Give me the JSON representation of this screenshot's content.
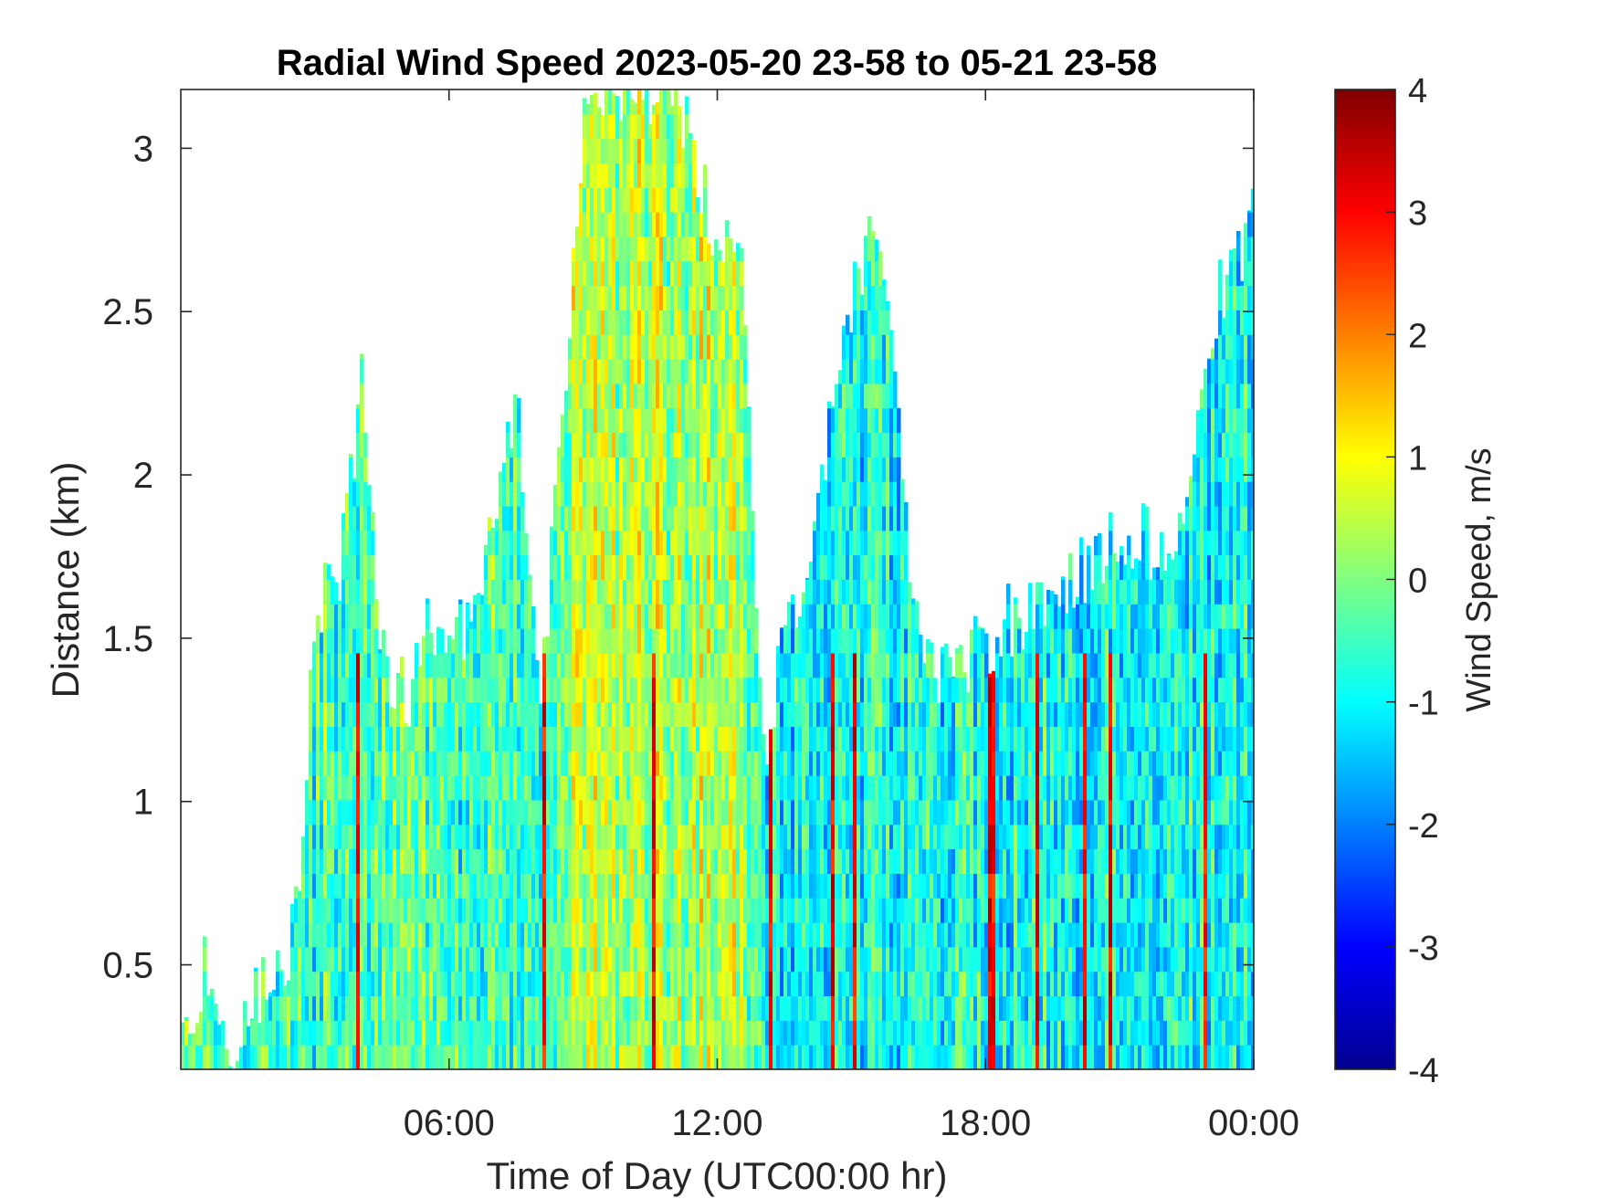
{
  "chart_data": {
    "type": "heatmap",
    "title": "Radial Wind Speed 2023-05-20 23-58 to 05-21 23-58",
    "xlabel": "Time of Day (UTC00:00 hr)",
    "ylabel": "Distance (km)",
    "xlim": [
      0,
      24
    ],
    "ylim": [
      0.18,
      3.18
    ],
    "x_ticks": [
      6,
      12,
      18,
      24
    ],
    "x_tick_labels": [
      "06:00",
      "12:00",
      "18:00",
      "00:00"
    ],
    "y_ticks": [
      0.5,
      1,
      1.5,
      2,
      2.5,
      3
    ],
    "y_tick_labels": [
      "0.5",
      "1",
      "1.5",
      "2",
      "2.5",
      "3"
    ],
    "colorbar": {
      "label": "Wind Speed, m/s",
      "colormap": "jet",
      "range": [
        -4,
        4
      ],
      "ticks": [
        4,
        3,
        2,
        1,
        0,
        -1,
        -2,
        -3,
        -4
      ],
      "tick_labels": [
        "4",
        "3",
        "2",
        "1",
        "0",
        "-1",
        "-2",
        "-3",
        "-4"
      ]
    },
    "grid": false,
    "data_coverage_top_km": [
      {
        "hour": 0.0,
        "top": 0.3
      },
      {
        "hour": 0.5,
        "top": 0.5
      },
      {
        "hour": 1.0,
        "top": 0.2
      },
      {
        "hour": 2.5,
        "top": 0.6
      },
      {
        "hour": 3.0,
        "top": 1.6
      },
      {
        "hour": 3.5,
        "top": 1.7
      },
      {
        "hour": 4.0,
        "top": 2.3
      },
      {
        "hour": 4.5,
        "top": 1.4
      },
      {
        "hour": 5.0,
        "top": 1.3
      },
      {
        "hour": 5.5,
        "top": 1.6
      },
      {
        "hour": 6.0,
        "top": 1.5
      },
      {
        "hour": 6.5,
        "top": 1.5
      },
      {
        "hour": 7.0,
        "top": 1.9
      },
      {
        "hour": 7.5,
        "top": 2.2
      },
      {
        "hour": 8.0,
        "top": 1.3
      },
      {
        "hour": 8.5,
        "top": 2.2
      },
      {
        "hour": 9.0,
        "top": 3.18
      },
      {
        "hour": 10.0,
        "top": 3.18
      },
      {
        "hour": 11.0,
        "top": 3.18
      },
      {
        "hour": 12.0,
        "top": 2.7
      },
      {
        "hour": 12.5,
        "top": 2.6
      },
      {
        "hour": 13.0,
        "top": 1.2
      },
      {
        "hour": 14.0,
        "top": 1.8
      },
      {
        "hour": 15.0,
        "top": 2.6
      },
      {
        "hour": 15.5,
        "top": 2.8
      },
      {
        "hour": 16.0,
        "top": 2.1
      },
      {
        "hour": 16.5,
        "top": 1.4
      },
      {
        "hour": 17.0,
        "top": 1.4
      },
      {
        "hour": 17.5,
        "top": 1.4
      },
      {
        "hour": 18.0,
        "top": 1.5
      },
      {
        "hour": 19.0,
        "top": 1.6
      },
      {
        "hour": 20.0,
        "top": 1.7
      },
      {
        "hour": 21.0,
        "top": 1.8
      },
      {
        "hour": 22.0,
        "top": 1.8
      },
      {
        "hour": 22.5,
        "top": 2.0
      },
      {
        "hour": 23.0,
        "top": 2.5
      },
      {
        "hour": 24.0,
        "top": 2.8
      }
    ]
  }
}
